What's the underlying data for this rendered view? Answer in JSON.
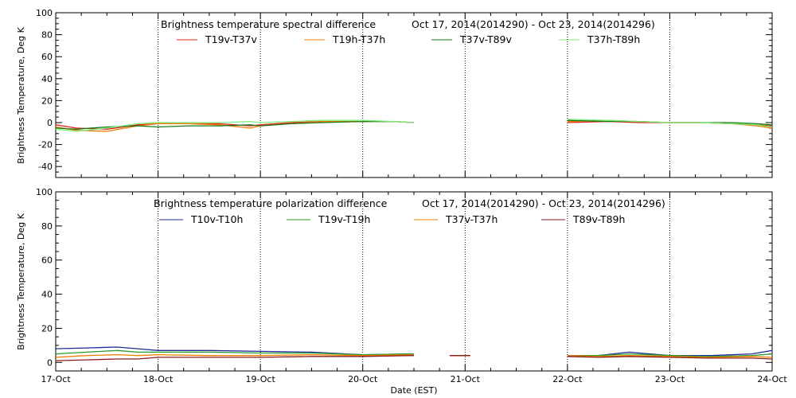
{
  "x_axis": {
    "label": "Date (EST)",
    "ticks": [
      "17-Oct",
      "18-Oct",
      "19-Oct",
      "20-Oct",
      "21-Oct",
      "22-Oct",
      "23-Oct",
      "24-Oct"
    ],
    "range_days": [
      0,
      7
    ]
  },
  "chart_data": [
    {
      "type": "line",
      "title": "Brightness temperature spectral difference",
      "date_range": "Oct 17, 2014(2014290) - Oct 23, 2014(2014296)",
      "ylabel": "Brightness Temperature, Deg K",
      "ylim": [
        -50,
        100
      ],
      "yticks": [
        "-40",
        "-20",
        "0",
        "20",
        "40",
        "60",
        "80",
        "100"
      ],
      "ytick_values": [
        -40,
        -20,
        0,
        20,
        40,
        60,
        80,
        100
      ],
      "grid": "vertical dotted at day boundaries",
      "legend_position": "top",
      "series": [
        {
          "name": "T19v-T37v",
          "color": "#e8201a",
          "x": [
            0,
            0.2,
            0.5,
            0.8,
            1.0,
            1.3,
            1.6,
            1.9,
            2.0,
            2.3,
            2.6,
            3.0,
            3.3,
            3.5,
            3.55,
            4.9,
            5.0,
            5.4,
            5.7,
            6.0,
            6.3,
            6.6,
            6.85,
            7.0
          ],
          "y": [
            -2,
            -5,
            -6,
            -2,
            -1,
            -1,
            -1,
            -3,
            -2,
            0,
            1,
            1,
            1,
            0,
            null,
            null,
            0,
            1,
            0,
            0,
            0,
            -1,
            -2,
            -3
          ]
        },
        {
          "name": "T19h-T37h",
          "color": "#f07800",
          "x": [
            0,
            0.2,
            0.5,
            0.8,
            1.0,
            1.3,
            1.6,
            1.9,
            2.0,
            2.3,
            2.6,
            3.0,
            3.3,
            3.5,
            3.55,
            4.9,
            5.0,
            5.4,
            5.7,
            6.0,
            6.3,
            6.6,
            6.85,
            7.0
          ],
          "y": [
            -4,
            -7,
            -8,
            -3,
            -1,
            -1,
            -2,
            -5,
            -3,
            -1,
            1,
            1,
            1,
            0,
            null,
            null,
            1,
            2,
            1,
            0,
            0,
            -1,
            -3,
            -5
          ]
        },
        {
          "name": "T37v-T89v",
          "color": "#1a7a1a",
          "x": [
            0,
            0.2,
            0.5,
            0.8,
            1.0,
            1.3,
            1.6,
            1.9,
            2.0,
            2.3,
            2.6,
            3.0,
            3.3,
            3.5,
            3.55,
            4.9,
            5.0,
            5.4,
            5.7,
            6.0,
            6.3,
            6.6,
            6.85,
            7.0
          ],
          "y": [
            -5,
            -6,
            -4,
            -3,
            -4,
            -3,
            -3,
            -2,
            -3,
            -1,
            0,
            1,
            1,
            0,
            null,
            null,
            2,
            1,
            1,
            0,
            0,
            0,
            -1,
            -2
          ]
        },
        {
          "name": "T37h-T89h",
          "color": "#7cf07c",
          "x": [
            0,
            0.2,
            0.5,
            0.8,
            1.0,
            1.3,
            1.6,
            1.9,
            2.0,
            2.3,
            2.6,
            3.0,
            3.3,
            3.5,
            3.55,
            4.9,
            5.0,
            5.4,
            5.7,
            6.0,
            6.3,
            6.6,
            6.85,
            7.0
          ],
          "y": [
            -6,
            -8,
            -5,
            -1,
            0,
            0,
            0,
            1,
            0,
            1,
            2,
            2,
            1,
            0,
            null,
            null,
            3,
            2,
            1,
            0,
            0,
            -1,
            -2,
            -4
          ]
        }
      ]
    },
    {
      "type": "line",
      "title": "Brightness temperature polarization difference",
      "date_range": "Oct 17, 2014(2014290) - Oct 23, 2014(2014296)",
      "ylabel": "Brightness Temperature, Deg K",
      "ylim": [
        -5,
        100
      ],
      "yticks": [
        "0",
        "20",
        "40",
        "60",
        "80",
        "100"
      ],
      "ytick_values": [
        0,
        20,
        40,
        60,
        80,
        100
      ],
      "grid": "vertical dotted at day boundaries",
      "legend_position": "top",
      "series": [
        {
          "name": "T10v-T10h",
          "color": "#1f2a9a",
          "x": [
            0,
            0.3,
            0.6,
            0.8,
            1.0,
            1.5,
            2.0,
            2.5,
            3.0,
            3.5,
            3.55,
            3.85,
            4.05,
            4.1,
            4.9,
            5.0,
            5.3,
            5.6,
            6.0,
            6.4,
            6.8,
            7.0
          ],
          "y": [
            8,
            8.5,
            9,
            8,
            7,
            7,
            6.5,
            6,
            4.5,
            5,
            null,
            4,
            4,
            null,
            null,
            4,
            4,
            6,
            4,
            4,
            5,
            7
          ]
        },
        {
          "name": "T19v-T19h",
          "color": "#2a9a2a",
          "x": [
            0,
            0.3,
            0.6,
            0.8,
            1.0,
            1.5,
            2.0,
            2.5,
            3.0,
            3.5,
            3.55,
            3.85,
            4.05,
            4.1,
            4.9,
            5.0,
            5.3,
            5.6,
            6.0,
            6.4,
            6.8,
            7.0
          ],
          "y": [
            5,
            6,
            7,
            6,
            6,
            6,
            5.5,
            5.5,
            4.5,
            5,
            null,
            4,
            4,
            null,
            null,
            4,
            4,
            5,
            4,
            3.5,
            4,
            5
          ]
        },
        {
          "name": "T37v-T37h",
          "color": "#f08000",
          "x": [
            0,
            0.3,
            0.6,
            0.8,
            1.0,
            1.5,
            2.0,
            2.5,
            3.0,
            3.5,
            3.55,
            3.85,
            4.05,
            4.1,
            4.9,
            5.0,
            5.3,
            5.6,
            6.0,
            6.4,
            6.8,
            7.0
          ],
          "y": [
            3,
            4,
            4.5,
            4,
            4.5,
            4,
            4,
            4.5,
            4,
            4.5,
            null,
            4,
            4,
            null,
            null,
            4,
            3.5,
            4,
            3.5,
            3,
            3.5,
            3
          ]
        },
        {
          "name": "T89v-T89h",
          "color": "#8a1a1a",
          "x": [
            0,
            0.3,
            0.6,
            0.8,
            1.0,
            1.5,
            2.0,
            2.5,
            3.0,
            3.5,
            3.55,
            3.85,
            4.05,
            4.1,
            4.9,
            5.0,
            5.3,
            5.6,
            6.0,
            6.4,
            6.8,
            7.0
          ],
          "y": [
            1,
            1.5,
            2,
            2,
            3,
            3,
            3,
            3.5,
            3.5,
            4,
            null,
            4,
            4,
            null,
            null,
            3.5,
            3,
            3.5,
            3,
            2.5,
            2.5,
            2
          ]
        }
      ]
    }
  ]
}
